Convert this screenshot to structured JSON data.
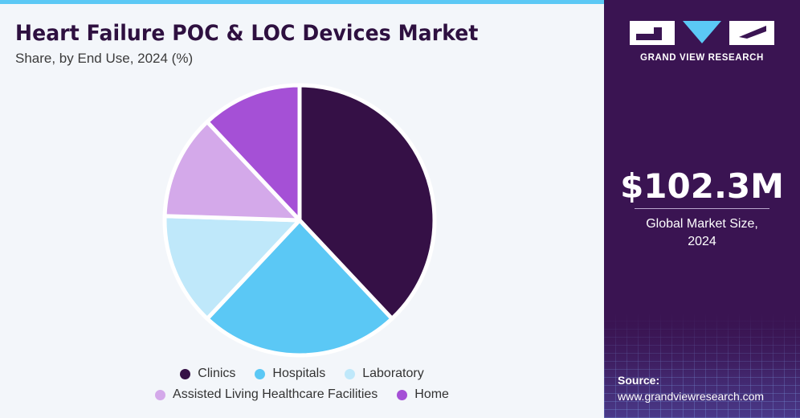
{
  "header": {
    "title": "Heart Failure POC & LOC Devices Market",
    "subtitle": "Share, by End Use, 2024 (%)"
  },
  "chart_data": {
    "type": "pie",
    "title": "Heart Failure POC & LOC Devices Market",
    "subtitle": "Share, by End Use, 2024 (%)",
    "categories": [
      "Clinics",
      "Hospitals",
      "Laboratory",
      "Assisted Living Healthcare Facilities",
      "Home"
    ],
    "values": [
      38,
      24,
      13.5,
      12.5,
      12
    ],
    "colors": [
      "#351046",
      "#5bc8f5",
      "#bfe8fa",
      "#d4a9ea",
      "#a550d6"
    ],
    "start_angle_deg": 0,
    "direction": "clockwise",
    "legend_position": "bottom"
  },
  "legend": {
    "row1": [
      "Clinics",
      "Hospitals",
      "Laboratory"
    ],
    "row2": [
      "Assisted Living Healthcare Facilities",
      "Home"
    ]
  },
  "sidebar": {
    "brand": "GRAND VIEW RESEARCH",
    "market_size": "$102.3M",
    "market_label_line1": "Global Market Size,",
    "market_label_line2": "2024",
    "source_label": "Source:",
    "source_url": "www.grandviewresearch.com",
    "background_color": "#3a1452"
  }
}
